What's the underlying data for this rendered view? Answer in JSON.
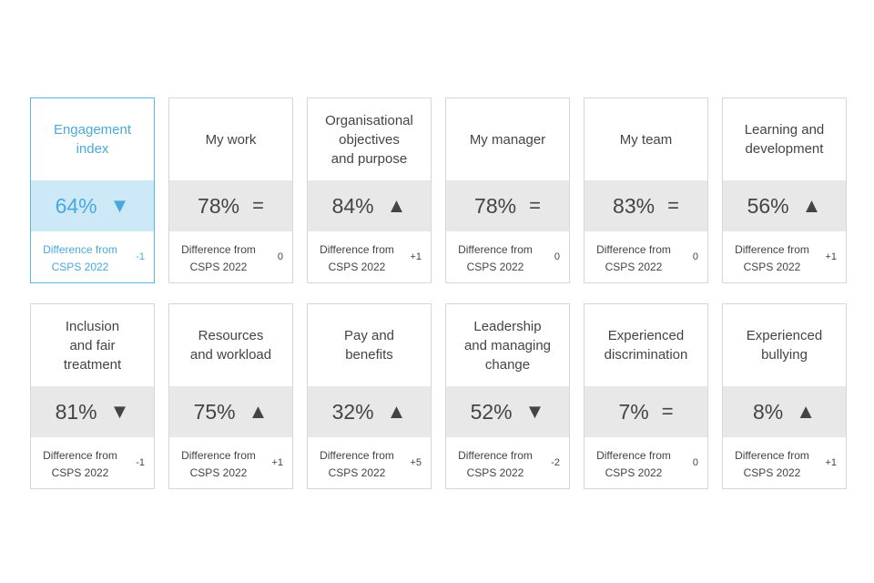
{
  "cards": [
    {
      "title": [
        "Engagement",
        "index"
      ],
      "value": "64%",
      "trend": "▼",
      "difference_label": [
        "Difference from",
        "CSPS 2022"
      ],
      "difference": "-1",
      "selected": true
    },
    {
      "title": [
        "My work"
      ],
      "value": "78%",
      "trend": "=",
      "difference_label": [
        "Difference from",
        "CSPS 2022"
      ],
      "difference": "0"
    },
    {
      "title": [
        "Organisational",
        "objectives",
        "and purpose"
      ],
      "value": "84%",
      "trend": "▲",
      "difference_label": [
        "Difference from",
        "CSPS 2022"
      ],
      "difference": "+1"
    },
    {
      "title": [
        "My manager"
      ],
      "value": "78%",
      "trend": "=",
      "difference_label": [
        "Difference from",
        "CSPS 2022"
      ],
      "difference": "0"
    },
    {
      "title": [
        "My team"
      ],
      "value": "83%",
      "trend": "=",
      "difference_label": [
        "Difference from",
        "CSPS 2022"
      ],
      "difference": "0"
    },
    {
      "title": [
        "Learning and",
        "development"
      ],
      "value": "56%",
      "trend": "▲",
      "difference_label": [
        "Difference from",
        "CSPS 2022"
      ],
      "difference": "+1"
    },
    {
      "title": [
        "Inclusion",
        "and fair",
        "treatment"
      ],
      "value": "81%",
      "trend": "▼",
      "difference_label": [
        "Difference from",
        "CSPS 2022"
      ],
      "difference": "-1"
    },
    {
      "title": [
        "Resources",
        "and workload"
      ],
      "value": "75%",
      "trend": "▲",
      "difference_label": [
        "Difference from",
        "CSPS 2022"
      ],
      "difference": "+1"
    },
    {
      "title": [
        "Pay and",
        "benefits"
      ],
      "value": "32%",
      "trend": "▲",
      "difference_label": [
        "Difference from",
        "CSPS 2022"
      ],
      "difference": "+5"
    },
    {
      "title": [
        "Leadership",
        "and managing",
        "change"
      ],
      "value": "52%",
      "trend": "▼",
      "difference_label": [
        "Difference from",
        "CSPS 2022"
      ],
      "difference": "-2"
    },
    {
      "title": [
        "Experienced",
        "discrimination"
      ],
      "value": "7%",
      "trend": "=",
      "difference_label": [
        "Difference from",
        "CSPS 2022"
      ],
      "difference": "0"
    },
    {
      "title": [
        "Experienced",
        "bullying"
      ],
      "value": "8%",
      "trend": "▲",
      "difference_label": [
        "Difference from",
        "CSPS 2022"
      ],
      "difference": "+1"
    }
  ]
}
